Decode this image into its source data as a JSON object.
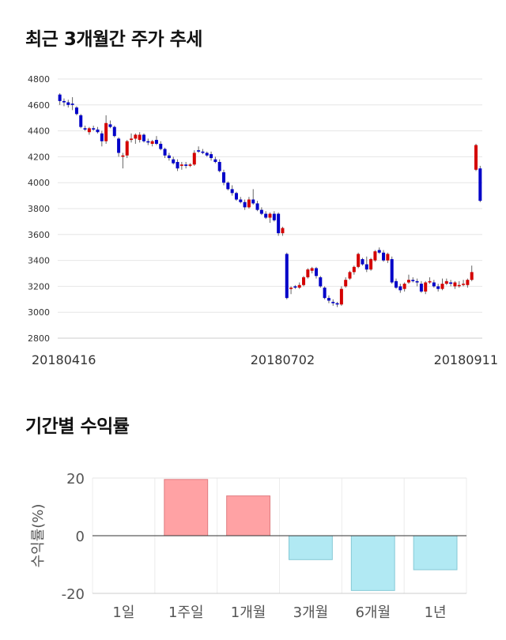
{
  "titles": {
    "price_trend": "최근 3개월간 주가 추세",
    "period_returns": "기간별 수익률"
  },
  "chart_data": [
    {
      "type": "candlestick",
      "title": "최근 3개월간 주가 추세",
      "ylim": [
        2800,
        4800
      ],
      "yticks": [
        2800,
        3000,
        3200,
        3400,
        3600,
        3800,
        4000,
        4200,
        4400,
        4600,
        4800
      ],
      "x_tick_labels": [
        {
          "label": "20180416",
          "index": 0
        },
        {
          "label": "20180702",
          "index": 53
        },
        {
          "label": "20180911",
          "index": 99
        }
      ],
      "colors": {
        "up": "#d40000",
        "down": "#0000c8",
        "wick": "#666666"
      },
      "candles": [
        [
          4680,
          4690,
          4600,
          4630
        ],
        [
          4630,
          4650,
          4590,
          4620
        ],
        [
          4620,
          4640,
          4580,
          4600
        ],
        [
          4610,
          4660,
          4560,
          4600
        ],
        [
          4580,
          4590,
          4520,
          4530
        ],
        [
          4520,
          4530,
          4420,
          4430
        ],
        [
          4420,
          4440,
          4400,
          4410
        ],
        [
          4390,
          4430,
          4370,
          4420
        ],
        [
          4420,
          4440,
          4400,
          4410
        ],
        [
          4410,
          4430,
          4380,
          4390
        ],
        [
          4380,
          4400,
          4280,
          4320
        ],
        [
          4320,
          4520,
          4300,
          4460
        ],
        [
          4450,
          4480,
          4420,
          4430
        ],
        [
          4430,
          4440,
          4350,
          4360
        ],
        [
          4340,
          4350,
          4200,
          4230
        ],
        [
          4200,
          4230,
          4110,
          4210
        ],
        [
          4210,
          4330,
          4190,
          4320
        ],
        [
          4330,
          4380,
          4310,
          4340
        ],
        [
          4340,
          4380,
          4300,
          4370
        ],
        [
          4330,
          4390,
          4310,
          4370
        ],
        [
          4370,
          4380,
          4310,
          4320
        ],
        [
          4320,
          4340,
          4290,
          4310
        ],
        [
          4300,
          4330,
          4280,
          4320
        ],
        [
          4330,
          4360,
          4290,
          4300
        ],
        [
          4300,
          4320,
          4250,
          4260
        ],
        [
          4260,
          4270,
          4190,
          4210
        ],
        [
          4210,
          4230,
          4170,
          4190
        ],
        [
          4180,
          4200,
          4140,
          4150
        ],
        [
          4160,
          4180,
          4090,
          4110
        ],
        [
          4130,
          4160,
          4100,
          4140
        ],
        [
          4140,
          4160,
          4110,
          4130
        ],
        [
          4130,
          4150,
          4120,
          4140
        ],
        [
          4140,
          4250,
          4130,
          4230
        ],
        [
          4250,
          4280,
          4230,
          4240
        ],
        [
          4240,
          4260,
          4220,
          4230
        ],
        [
          4230,
          4240,
          4200,
          4210
        ],
        [
          4220,
          4240,
          4170,
          4190
        ],
        [
          4180,
          4200,
          4150,
          4160
        ],
        [
          4160,
          4180,
          4080,
          4090
        ],
        [
          4080,
          4100,
          3980,
          4000
        ],
        [
          4000,
          4010,
          3940,
          3950
        ],
        [
          3950,
          3980,
          3900,
          3920
        ],
        [
          3920,
          3930,
          3860,
          3870
        ],
        [
          3870,
          3890,
          3840,
          3850
        ],
        [
          3850,
          3870,
          3790,
          3810
        ],
        [
          3810,
          3890,
          3800,
          3870
        ],
        [
          3870,
          3950,
          3830,
          3840
        ],
        [
          3840,
          3860,
          3780,
          3790
        ],
        [
          3790,
          3810,
          3750,
          3760
        ],
        [
          3760,
          3780,
          3720,
          3730
        ],
        [
          3730,
          3770,
          3690,
          3760
        ],
        [
          3760,
          3780,
          3700,
          3710
        ],
        [
          3760,
          3770,
          3590,
          3610
        ],
        [
          3610,
          3660,
          3590,
          3650
        ],
        [
          3450,
          3460,
          3100,
          3110
        ],
        [
          3180,
          3200,
          3140,
          3190
        ],
        [
          3200,
          3210,
          3180,
          3190
        ],
        [
          3190,
          3230,
          3180,
          3210
        ],
        [
          3210,
          3280,
          3200,
          3270
        ],
        [
          3270,
          3340,
          3260,
          3330
        ],
        [
          3320,
          3350,
          3300,
          3340
        ],
        [
          3340,
          3350,
          3260,
          3280
        ],
        [
          3270,
          3280,
          3190,
          3200
        ],
        [
          3190,
          3200,
          3100,
          3110
        ],
        [
          3110,
          3130,
          3070,
          3090
        ],
        [
          3080,
          3100,
          3050,
          3070
        ],
        [
          3070,
          3080,
          3040,
          3060
        ],
        [
          3060,
          3200,
          3050,
          3180
        ],
        [
          3200,
          3270,
          3190,
          3250
        ],
        [
          3260,
          3320,
          3250,
          3310
        ],
        [
          3310,
          3360,
          3290,
          3350
        ],
        [
          3350,
          3460,
          3340,
          3450
        ],
        [
          3410,
          3420,
          3360,
          3370
        ],
        [
          3370,
          3430,
          3310,
          3330
        ],
        [
          3330,
          3420,
          3320,
          3410
        ],
        [
          3400,
          3480,
          3390,
          3470
        ],
        [
          3480,
          3500,
          3450,
          3460
        ],
        [
          3460,
          3480,
          3390,
          3400
        ],
        [
          3400,
          3460,
          3380,
          3450
        ],
        [
          3410,
          3430,
          3220,
          3230
        ],
        [
          3240,
          3260,
          3180,
          3190
        ],
        [
          3200,
          3220,
          3150,
          3170
        ],
        [
          3180,
          3230,
          3160,
          3220
        ],
        [
          3230,
          3290,
          3220,
          3250
        ],
        [
          3250,
          3270,
          3230,
          3240
        ],
        [
          3240,
          3260,
          3200,
          3230
        ],
        [
          3220,
          3240,
          3150,
          3160
        ],
        [
          3160,
          3240,
          3140,
          3230
        ],
        [
          3230,
          3270,
          3220,
          3240
        ],
        [
          3230,
          3250,
          3190,
          3200
        ],
        [
          3200,
          3220,
          3160,
          3180
        ],
        [
          3180,
          3260,
          3170,
          3220
        ],
        [
          3220,
          3260,
          3210,
          3240
        ],
        [
          3230,
          3250,
          3200,
          3220
        ],
        [
          3200,
          3240,
          3180,
          3230
        ],
        [
          3210,
          3240,
          3190,
          3210
        ],
        [
          3220,
          3250,
          3200,
          3220
        ],
        [
          3210,
          3260,
          3190,
          3250
        ],
        [
          3250,
          3360,
          3240,
          3310
        ],
        [
          4100,
          4300,
          4090,
          4290
        ],
        [
          4110,
          4130,
          3850,
          3860
        ]
      ]
    },
    {
      "type": "bar",
      "title": "기간별 수익률",
      "ylabel": "수익률(%)",
      "ylim": [
        -20,
        20
      ],
      "yticks": [
        -20,
        0,
        20
      ],
      "categories": [
        "1일",
        "1주일",
        "1개월",
        "3개월",
        "6개월",
        "1년"
      ],
      "values": [
        0,
        19.5,
        13.8,
        -8.3,
        -19,
        -11.8
      ],
      "colors": {
        "positive": "#ffa2a4",
        "positive_edge": "#e07c80",
        "negative": "#b1e9f3",
        "negative_edge": "#85c9d6"
      }
    }
  ]
}
